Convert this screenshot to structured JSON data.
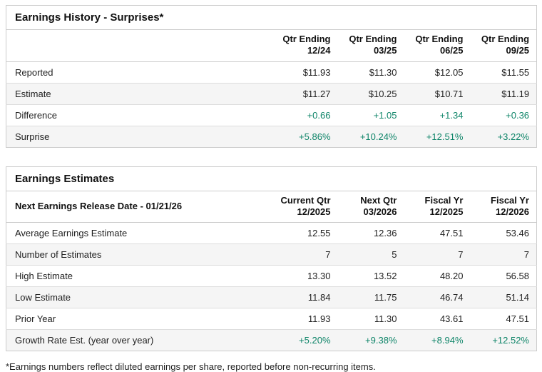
{
  "colors": {
    "positive": "#0f8569",
    "border": "#cccccc",
    "row_divider": "#dddddd",
    "row_alt_bg": "#f5f5f5",
    "text": "#1f1f1f"
  },
  "earnings_history": {
    "title": "Earnings History - Surprises*",
    "columns": [
      {
        "line1": "Qtr Ending",
        "line2": "12/24"
      },
      {
        "line1": "Qtr Ending",
        "line2": "03/25"
      },
      {
        "line1": "Qtr Ending",
        "line2": "06/25"
      },
      {
        "line1": "Qtr Ending",
        "line2": "09/25"
      }
    ],
    "rows": [
      {
        "label": "Reported",
        "values": [
          "$11.93",
          "$11.30",
          "$12.05",
          "$11.55"
        ]
      },
      {
        "label": "Estimate",
        "values": [
          "$11.27",
          "$10.25",
          "$10.71",
          "$11.19"
        ]
      },
      {
        "label": "Difference",
        "values": [
          "+0.66",
          "+1.05",
          "+1.34",
          "+0.36"
        ]
      },
      {
        "label": "Surprise",
        "values": [
          "+5.86%",
          "+10.24%",
          "+12.51%",
          "+3.22%"
        ]
      }
    ]
  },
  "earnings_estimates": {
    "title": "Earnings Estimates",
    "header_label": "Next Earnings Release Date - 01/21/26",
    "columns": [
      {
        "line1": "Current Qtr",
        "line2": "12/2025"
      },
      {
        "line1": "Next Qtr",
        "line2": "03/2026"
      },
      {
        "line1": "Fiscal Yr",
        "line2": "12/2025"
      },
      {
        "line1": "Fiscal Yr",
        "line2": "12/2026"
      }
    ],
    "rows": [
      {
        "label": "Average Earnings Estimate",
        "values": [
          "12.55",
          "12.36",
          "47.51",
          "53.46"
        ]
      },
      {
        "label": "Number of Estimates",
        "values": [
          "7",
          "5",
          "7",
          "7"
        ]
      },
      {
        "label": "High Estimate",
        "values": [
          "13.30",
          "13.52",
          "48.20",
          "56.58"
        ]
      },
      {
        "label": "Low Estimate",
        "values": [
          "11.84",
          "11.75",
          "46.74",
          "51.14"
        ]
      },
      {
        "label": "Prior Year",
        "values": [
          "11.93",
          "11.30",
          "43.61",
          "47.51"
        ]
      },
      {
        "label": "Growth Rate Est. (year over year)",
        "values": [
          "+5.20%",
          "+9.38%",
          "+8.94%",
          "+12.52%"
        ]
      }
    ]
  },
  "footnote": "*Earnings numbers reflect diluted earnings per share, reported before non-recurring items."
}
